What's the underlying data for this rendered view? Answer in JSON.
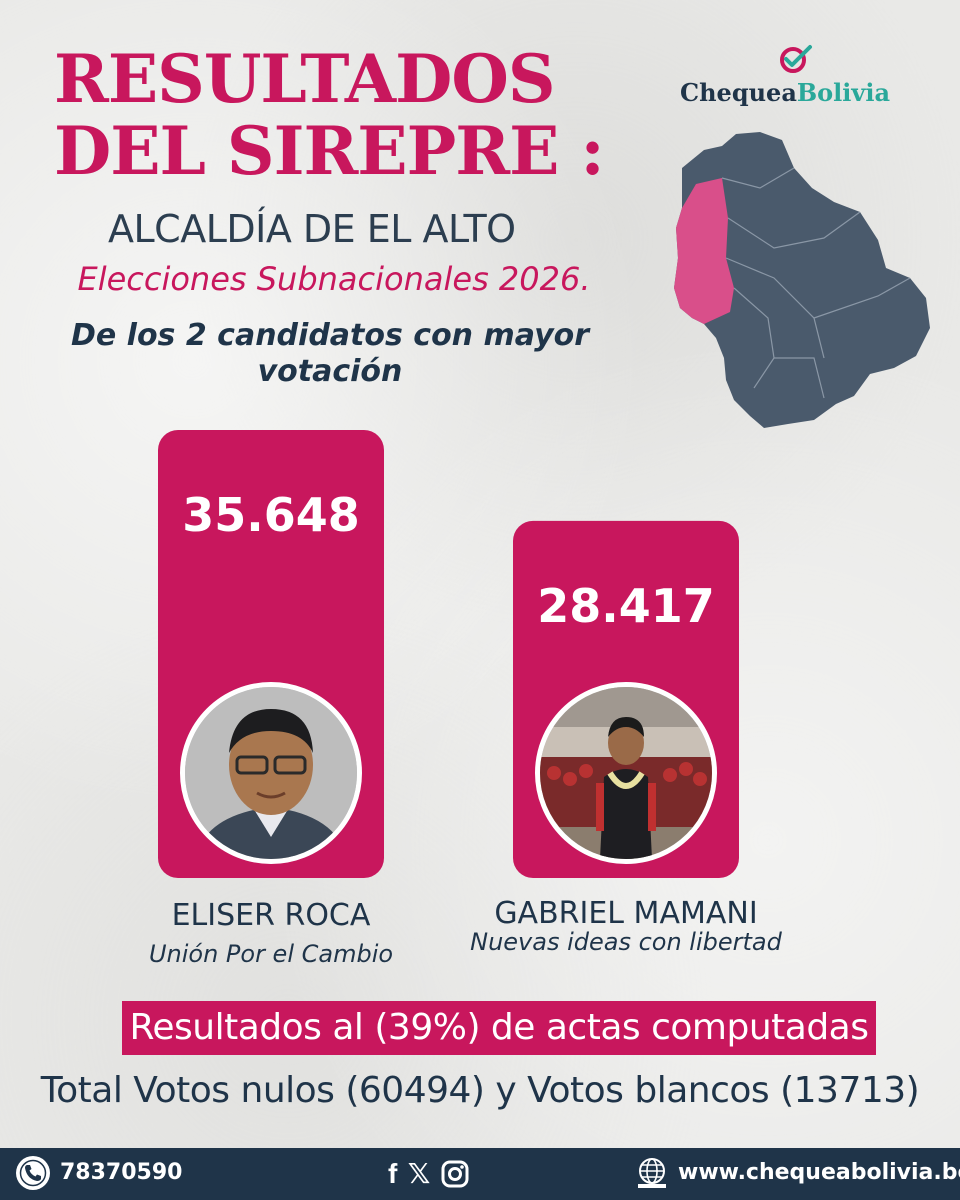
{
  "header": {
    "title_line1": "RESULTADOS",
    "title_line2": "DEL SIREPRE :",
    "subtitle": "ALCALDÍA DE EL ALTO",
    "election": "Elecciones Subnacionales 2026.",
    "note_line1": "De los 2 candidatos con mayor",
    "note_line2": "votación"
  },
  "brand": {
    "name_part1": "Chequea",
    "name_part2": "Bolivia",
    "primary_color": "#c8175d",
    "secondary_color": "#1f3449",
    "accent_color": "#2aa89a"
  },
  "map": {
    "highlighted_color": "#d94f8a",
    "base_color": "#4a5a6c"
  },
  "chart_data": {
    "type": "bar",
    "categories": [
      "ELISER ROCA",
      "GABRIEL MAMANI"
    ],
    "values": [
      35648,
      28417
    ],
    "value_labels": [
      "35.648",
      "28.417"
    ],
    "parties": [
      "Unión Por el Cambio",
      "Nuevas ideas con libertad"
    ],
    "bar_color": "#c8175d",
    "grid": false
  },
  "results": {
    "progress_text": "Resultados al  (39%) de actas computadas",
    "progress_percent": 39,
    "totals_text": "Total Votos nulos (60494) y Votos blancos (13713)",
    "null_votes": 60494,
    "blank_votes": 13713
  },
  "footer": {
    "phone": "78370590",
    "phone_icon": "phone-icon",
    "social_icons": [
      "facebook-icon",
      "x-icon",
      "instagram-icon"
    ],
    "facebook_glyph": "f",
    "x_glyph": "𝕏",
    "website": "www.chequeabolivia.bo",
    "website_icon": "globe-icon"
  }
}
